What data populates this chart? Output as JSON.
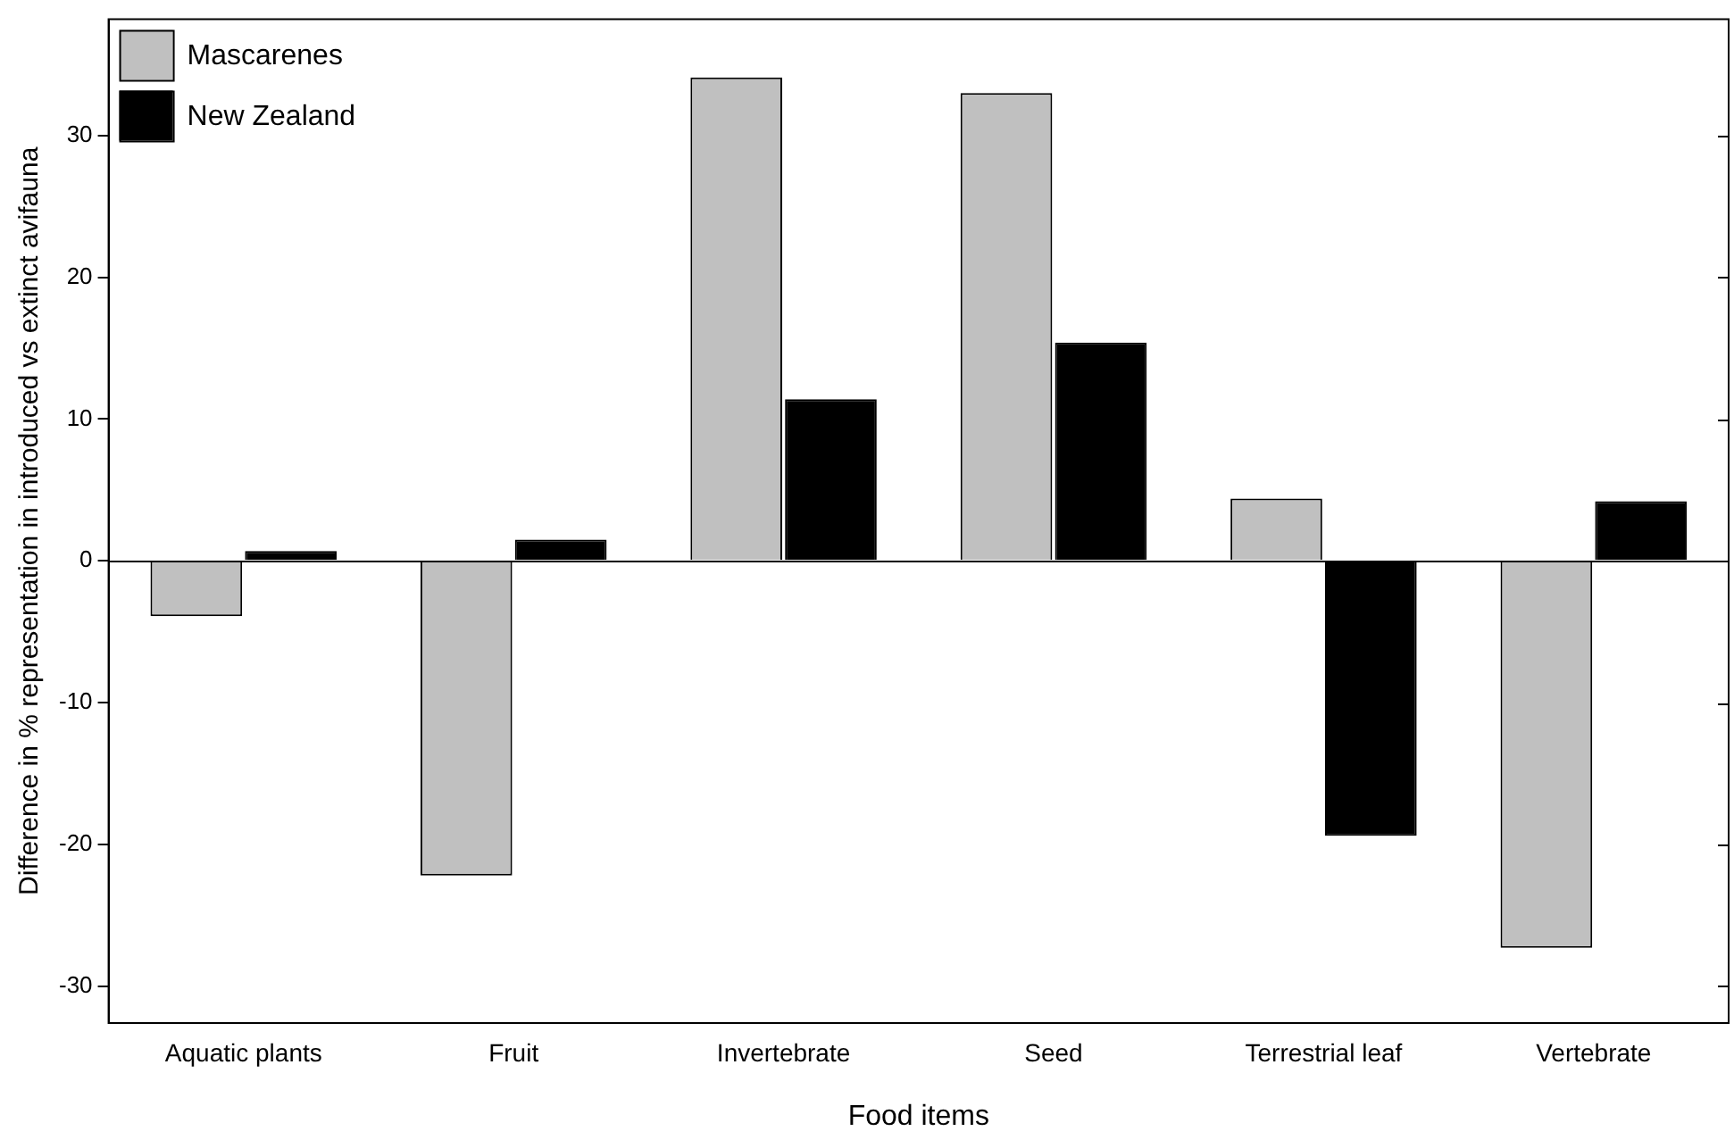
{
  "chart_data": {
    "type": "bar",
    "xlabel": "Food items",
    "ylabel": "Difference in % representation in introduced vs extinct avifauna",
    "categories": [
      "Aquatic plants",
      "Fruit",
      "Invertebrate",
      "Seed",
      "Terrestrial leaf",
      "Vertebrate"
    ],
    "series": [
      {
        "name": "Mascarenes",
        "color": "#c0c0c0",
        "values": [
          -3.9,
          -22.2,
          34.1,
          33.0,
          4.4,
          -27.3
        ]
      },
      {
        "name": "New Zealand",
        "color": "#000000",
        "values": [
          0.7,
          1.5,
          11.4,
          15.4,
          -19.4,
          4.2
        ]
      }
    ],
    "ylim": [
      -32.6,
      38.2
    ],
    "yticks": [
      -30,
      -20,
      -10,
      0,
      10,
      20,
      30
    ],
    "ref_lines": [
      {
        "axis": "y",
        "value": 0
      }
    ],
    "grid": false,
    "legend": "top left"
  }
}
